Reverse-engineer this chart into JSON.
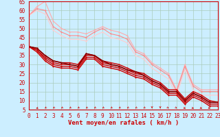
{
  "xlabel": "Vent moyen/en rafales ( km/h )",
  "background_color": "#cceeff",
  "grid_color": "#aaccbb",
  "x": [
    0,
    1,
    2,
    3,
    4,
    5,
    6,
    7,
    8,
    9,
    10,
    11,
    12,
    13,
    14,
    15,
    16,
    17,
    18,
    19,
    20,
    21,
    22,
    23
  ],
  "ylim": [
    5,
    65
  ],
  "xlim": [
    0,
    23
  ],
  "yticks": [
    5,
    10,
    15,
    20,
    25,
    30,
    35,
    40,
    45,
    50,
    55,
    60,
    65
  ],
  "series": [
    {
      "color": "#ffaaaa",
      "values": [
        57,
        62,
        65,
        54,
        50,
        48,
        48,
        47,
        49,
        51,
        49,
        48,
        46,
        38,
        36,
        31,
        28,
        25,
        16,
        30,
        19,
        16,
        16,
        16
      ],
      "lw": 0.8
    },
    {
      "color": "#ff8888",
      "values": [
        57,
        61,
        60,
        51,
        48,
        46,
        46,
        45,
        48,
        50,
        47,
        46,
        44,
        37,
        35,
        30,
        27,
        24,
        15,
        29,
        18,
        15,
        15,
        15
      ],
      "lw": 0.8
    },
    {
      "color": "#ffcccc",
      "values": [
        57,
        60,
        58,
        49,
        46,
        44,
        44,
        43,
        46,
        48,
        45,
        44,
        42,
        35,
        33,
        28,
        25,
        22,
        13,
        27,
        16,
        13,
        13,
        13
      ],
      "lw": 0.8
    },
    {
      "color": "#cc0000",
      "values": [
        40,
        39,
        35,
        32,
        31,
        31,
        30,
        36,
        35,
        32,
        31,
        30,
        28,
        26,
        25,
        22,
        20,
        16,
        16,
        11,
        15,
        13,
        10,
        9
      ],
      "lw": 1.0
    },
    {
      "color": "#cc0000",
      "values": [
        40,
        38,
        34,
        31,
        30,
        30,
        29,
        35,
        35,
        31,
        30,
        29,
        27,
        25,
        24,
        21,
        19,
        15,
        15,
        10,
        14,
        12,
        9,
        9
      ],
      "lw": 1.0
    },
    {
      "color": "#cc0000",
      "values": [
        40,
        38,
        33,
        30,
        29,
        29,
        28,
        34,
        34,
        30,
        29,
        28,
        26,
        24,
        23,
        20,
        18,
        14,
        14,
        9,
        13,
        11,
        8,
        8
      ],
      "lw": 1.0
    },
    {
      "color": "#cc0000",
      "values": [
        40,
        37,
        32,
        29,
        28,
        28,
        27,
        33,
        33,
        29,
        28,
        27,
        25,
        23,
        22,
        19,
        17,
        13,
        13,
        8,
        12,
        10,
        7,
        7
      ],
      "lw": 1.0
    },
    {
      "color": "#880000",
      "values": [
        40,
        39,
        35,
        32,
        31,
        30,
        29,
        36,
        35,
        32,
        30,
        29,
        27,
        26,
        24,
        21,
        19,
        15,
        15,
        10,
        14,
        12,
        9,
        9
      ],
      "lw": 1.2
    }
  ],
  "arrow_angles": [
    225,
    225,
    200,
    200,
    200,
    200,
    200,
    200,
    200,
    200,
    200,
    200,
    200,
    200,
    200,
    180,
    180,
    160,
    160,
    135,
    135,
    135,
    135,
    90
  ],
  "red_color": "#cc0000",
  "tick_color": "#cc0000",
  "label_fontsize": 5.5,
  "xlabel_fontsize": 6.5
}
